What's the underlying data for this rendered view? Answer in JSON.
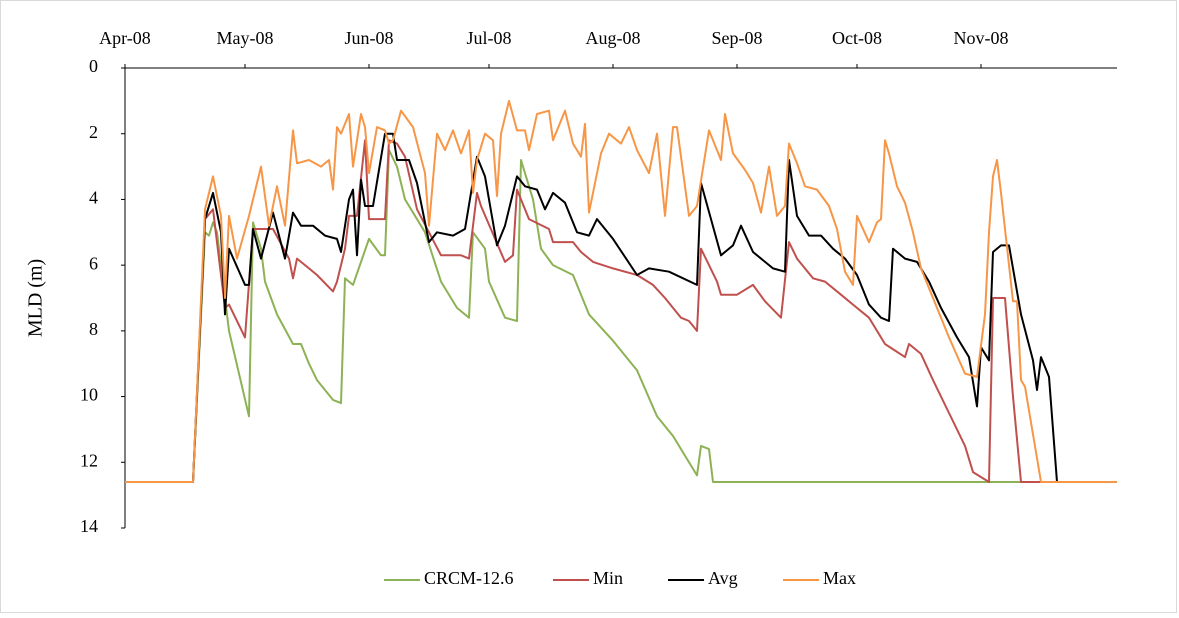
{
  "chart_data": {
    "type": "line",
    "y_label": "MLD (m)",
    "xlim": [
      0,
      248
    ],
    "xticks": [
      {
        "value": 0,
        "label": "Apr-08"
      },
      {
        "value": 30,
        "label": "May-08"
      },
      {
        "value": 61,
        "label": "Jun-08"
      },
      {
        "value": 91,
        "label": "Jul-08"
      },
      {
        "value": 122,
        "label": "Aug-08"
      },
      {
        "value": 153,
        "label": "Sep-08"
      },
      {
        "value": 183,
        "label": "Oct-08"
      },
      {
        "value": 214,
        "label": "Nov-08"
      }
    ],
    "ylim": [
      14,
      0
    ],
    "yticks": [
      0,
      2,
      4,
      6,
      8,
      10,
      12,
      14
    ],
    "legend": "bottom",
    "series": [
      {
        "name": "CRCM-12.6",
        "color": "#8db255",
        "x": [
          0,
          17,
          20,
          21,
          22,
          23,
          26,
          31,
          32,
          34,
          35,
          38,
          42,
          44,
          46,
          48,
          52,
          54,
          55,
          57,
          61,
          64,
          65,
          66,
          68,
          70,
          75,
          79,
          83,
          86,
          87,
          90,
          91,
          95,
          98,
          99,
          102,
          104,
          107,
          112,
          116,
          122,
          128,
          133,
          137,
          143,
          144,
          146,
          147,
          248
        ],
        "values": [
          12.6,
          12.6,
          5,
          5.1,
          4.7,
          5,
          8,
          10.6,
          4.7,
          5.5,
          6.5,
          7.5,
          8.4,
          8.4,
          9,
          9.5,
          10.1,
          10.2,
          6.4,
          6.6,
          5.2,
          5.7,
          5.7,
          2.5,
          3,
          4,
          5,
          6.5,
          7.3,
          7.6,
          5,
          5.5,
          6.5,
          7.6,
          7.7,
          2.8,
          4,
          5.5,
          6,
          6.3,
          7.5,
          8.3,
          9.2,
          10.6,
          11.2,
          12.4,
          11.5,
          11.6,
          12.6,
          12.6
        ]
      },
      {
        "name": "Min",
        "color": "#c0504d",
        "x": [
          0,
          17,
          20,
          22,
          25,
          26,
          30,
          32,
          37,
          41,
          42,
          43,
          46,
          48,
          52,
          53,
          55,
          56,
          58,
          60,
          61,
          65,
          66,
          68,
          70,
          73,
          79,
          84,
          86,
          88,
          89,
          95,
          97,
          98,
          101,
          106,
          107,
          112,
          114,
          117,
          122,
          128,
          132,
          135,
          139,
          141,
          143,
          144,
          148,
          149,
          153,
          157,
          160,
          164,
          166,
          168,
          172,
          175,
          179,
          182,
          186,
          190,
          195,
          196,
          199,
          202,
          206,
          210,
          212,
          216,
          217,
          220,
          222,
          224,
          248
        ],
        "values": [
          12.6,
          12.6,
          4.6,
          4.3,
          7.3,
          7.2,
          8.2,
          4.9,
          4.9,
          5.8,
          6.4,
          5.8,
          6.1,
          6.3,
          6.8,
          6.5,
          5.5,
          4.5,
          4.5,
          2.2,
          4.6,
          4.6,
          2.2,
          2.3,
          2.7,
          4.3,
          5.7,
          5.7,
          5.8,
          3.8,
          4.2,
          5.9,
          5.7,
          3.7,
          4.6,
          4.9,
          5.3,
          5.3,
          5.6,
          5.9,
          6.1,
          6.3,
          6.6,
          7,
          7.6,
          7.7,
          8,
          5.5,
          6.5,
          6.9,
          6.9,
          6.6,
          7.1,
          7.6,
          5.3,
          5.8,
          6.4,
          6.5,
          6.9,
          7.2,
          7.6,
          8.4,
          8.8,
          8.4,
          8.7,
          9.5,
          10.5,
          11.5,
          12.3,
          12.6,
          7,
          7,
          10,
          12.6,
          12.6
        ]
      },
      {
        "name": "Avg",
        "color": "#000000",
        "x": [
          0,
          17,
          20,
          22,
          24,
          25,
          26,
          30,
          31,
          32,
          34,
          37,
          40,
          42,
          44,
          47,
          50,
          53,
          54,
          56,
          57,
          58,
          59,
          60,
          62,
          65,
          67,
          68,
          71,
          73,
          76,
          78,
          82,
          85,
          88,
          90,
          93,
          95,
          98,
          100,
          103,
          105,
          107,
          110,
          113,
          116,
          118,
          122,
          128,
          131,
          136,
          143,
          144,
          149,
          152,
          154,
          157,
          162,
          165,
          166,
          168,
          171,
          174,
          177,
          180,
          183,
          186,
          189,
          191,
          192,
          195,
          198,
          201,
          204,
          208,
          211,
          213,
          214,
          216,
          217,
          219,
          221,
          224,
          227,
          228,
          229,
          231,
          233,
          248
        ],
        "values": [
          12.6,
          12.6,
          4.6,
          3.8,
          5,
          7.5,
          5.5,
          6.6,
          6.6,
          4.9,
          5.8,
          4.4,
          5.8,
          4.4,
          4.8,
          4.8,
          5.1,
          5.2,
          5.6,
          4,
          3.7,
          5.7,
          3.4,
          4.2,
          4.2,
          2,
          2,
          2.8,
          2.8,
          3.5,
          5.3,
          5,
          5.1,
          4.9,
          2.7,
          3.3,
          5.4,
          4.8,
          3.3,
          3.6,
          3.7,
          4.3,
          3.8,
          4.1,
          5,
          5.1,
          4.6,
          5.2,
          6.3,
          6.1,
          6.2,
          6.6,
          3.5,
          5.7,
          5.4,
          4.8,
          5.6,
          6.1,
          6.2,
          2.8,
          4.5,
          5.1,
          5.1,
          5.5,
          5.8,
          6.3,
          7.2,
          7.6,
          7.7,
          5.5,
          5.8,
          5.9,
          6.5,
          7.3,
          8.2,
          8.8,
          10.3,
          8.5,
          8.9,
          5.6,
          5.4,
          5.4,
          7.5,
          8.9,
          9.8,
          8.8,
          9.4,
          12.6,
          12.6
        ]
      },
      {
        "name": "Max",
        "color": "#f79646",
        "x": [
          0,
          17,
          20,
          22,
          24,
          25,
          26,
          28,
          31,
          34,
          36,
          38,
          40,
          42,
          43,
          46,
          49,
          51,
          52,
          53,
          54,
          56,
          57,
          59,
          60,
          61,
          63,
          65,
          66,
          67,
          69,
          72,
          75,
          76,
          78,
          80,
          82,
          84,
          86,
          87,
          88,
          90,
          92,
          93,
          94,
          96,
          98,
          100,
          101,
          103,
          106,
          107,
          110,
          112,
          114,
          115,
          116,
          119,
          121,
          124,
          126,
          128,
          131,
          133,
          135,
          137,
          138,
          141,
          143,
          146,
          149,
          150,
          152,
          155,
          157,
          159,
          161,
          163,
          165,
          166,
          168,
          170,
          173,
          176,
          178,
          180,
          182,
          183,
          186,
          188,
          189,
          190,
          191,
          193,
          195,
          197,
          199,
          203,
          206,
          210,
          213,
          215,
          216,
          217,
          218,
          219,
          221,
          222,
          223,
          224,
          225,
          229,
          248
        ],
        "values": [
          12.6,
          12.6,
          4.3,
          3.3,
          4.5,
          7,
          4.5,
          5.8,
          4.5,
          3,
          4.8,
          3.6,
          4.8,
          1.9,
          2.9,
          2.8,
          3,
          2.8,
          3.7,
          1.8,
          2,
          1.4,
          3,
          1.4,
          1.8,
          3.2,
          1.8,
          1.9,
          2.3,
          2.2,
          1.3,
          1.8,
          3.2,
          4.8,
          2,
          2.5,
          1.9,
          2.6,
          1.9,
          3.8,
          2.8,
          2,
          2.2,
          3.9,
          2,
          1,
          1.9,
          1.9,
          2.5,
          1.4,
          1.3,
          2.2,
          1.3,
          2.3,
          2.7,
          1.7,
          4.4,
          2.6,
          2,
          2.3,
          1.8,
          2.5,
          3.2,
          2,
          4.5,
          1.8,
          1.8,
          4.5,
          4.2,
          1.9,
          2.8,
          1.4,
          2.6,
          3.1,
          3.5,
          4.4,
          3,
          4.5,
          4.2,
          2.3,
          2.9,
          3.6,
          3.7,
          4.2,
          4.9,
          6.2,
          6.6,
          4.5,
          5.3,
          4.7,
          4.6,
          2.2,
          2.6,
          3.6,
          4.1,
          5,
          6.1,
          7.3,
          8.2,
          9.3,
          9.4,
          7.5,
          5,
          3.3,
          2.8,
          3.8,
          6,
          7.1,
          7.1,
          9.5,
          9.7,
          12.6,
          12.6
        ]
      }
    ]
  }
}
